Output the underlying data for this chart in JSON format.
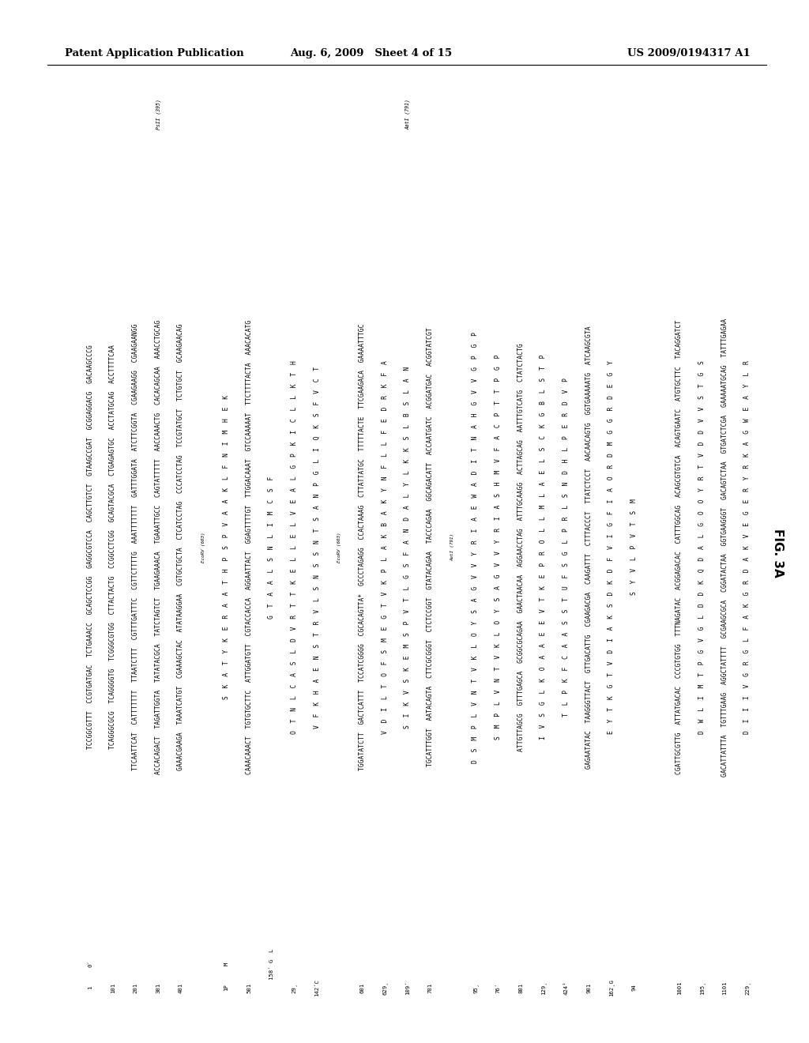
{
  "header_left": "Patent Application Publication",
  "header_middle": "Aug. 6, 2009   Sheet 4 of 15",
  "header_right": "US 2009/0194317 A1",
  "fig_label": "FIG. 3A",
  "background_color": "#ffffff",
  "text_color": "#000000",
  "columns": [
    {
      "num_top": "1",
      "num_bottom": "0⁴",
      "dna": "TCCGGCGTTT CCGTGATGAC TCTGAAACC GCAGCTCCGG GAGGCGTCCA CAGCTTGTCT GTAAGCCGAT GCGGAGGACG GACAAGCCCG",
      "aa": "",
      "note_top": "",
      "note_bottom": ""
    },
    {
      "num_top": "101",
      "num_bottom": "",
      "dna": "TCAGGGCGCG TCAGGGGGTG TCGGGCGTGG CTTACTACTG CCGGCCTCGG GCAGTACGCA CTGAGAGTGC ACCTATGCAG ACCTTTTCAA",
      "aa": "",
      "note_top": "",
      "note_bottom": ""
    },
    {
      "num_top": "201",
      "num_bottom": "",
      "dna": "TTCAATTCAT CATTTTTTTT TTAATCTTT CGTTTGATTTC CGTTCTTTTG AAATTTTTTT GATTTGGATA ATCTTCGGTA ACGAAGAAGG CGAAGAAGG",
      "aa": "",
      "note_top": "",
      "note_bottom": ""
    },
    {
      "num_top": "301",
      "num_bottom": "401",
      "dna": "ACCACAGACT TAGATTGGTA TATATACGCA TATCTAGTCT TGAAGAAACA TGAAATTGCC CAGTATTTTT AACCAAACTG CACACAGCAA AAACCTGCAG",
      "dna2": "GAAACGAAGA TAAATCATGT CGAAAGCTAC ATATAAGGAA CGTGCTGCTA CTCATCCTAC TCCGTATGCT TCCGTGTGCT GCAAGAACAG",
      "aa": "",
      "note_top": "PsII (395)",
      "note_bottom": ""
    },
    {
      "num_top": "1P",
      "num_bottom": "501",
      "dna": "M  S  K  A  T  Y  K  E  R  A  A  T  H  P  S  P  V  A  A  K  L  F  N  I  M  H  E  K",
      "dna2": "CAAACAAACT TGTGTGCTTC ATTGGATGTT CGTACCACCA AGGAATTACT GGAGTTTTGT TTGGACAAAT GTCCAAAAAT TTCTTTTACTA AAACACATG",
      "aa": "",
      "note_top": "",
      "note_bottom": ""
    },
    {
      "num_top": "29▸",
      "num_bottom": "142⁴C",
      "num_bottom2": "EcoRV (603)",
      "dna": "O  T  N  L  C  A  S  L  D  V  R  T  T  K  E  L  L  E  L  V  E  A  L  G  P  K  I  C  L  L  K  T  H",
      "dna2": "V  F  K  H  A  E  N  S  T  R  V  L  S  N  S  S  N  T  S  A  N  P  G  L  I  Q  K  S  F  V  C  T",
      "aa": "",
      "note_top": "",
      "note_bottom": ""
    },
    {
      "num_top": "601",
      "num_bottom": "",
      "dna": "TGGATATCTT GACTCATTT TCCATCGGGG CGCACAGTTA GCCCTAGAGG CCACTAAAG CTTATTATGC TTTTTACTE TTCGAAGACA GAAAATTTGC",
      "aa": "",
      "note_top": "",
      "note_bottom": ""
    },
    {
      "num_top": "629▸",
      "num_bottom": "109⁴",
      "dna": "V  D  I  L  T  D  F  S  M  E  G  T  V  K  P  L  A  K  B  A  K  Y  N  F  L  L  F  E  D  R  K  F  A",
      "dna2": "S  I  K  V  S  K  E  M  S  P  V  T  L  G  S  F  A  N  D  A  L  Y  L  K  K  S  L  B  S  L  A  N",
      "aa": "",
      "note_top": "AatI (781)",
      "note_bottom": ""
    },
    {
      "num_top": "701",
      "num_bottom": "",
      "dna": "TGCATTTGGT AATACAGTA CTTCGCGGGT CTCTCCGGT GTATACAGAA TACCCAGAA GGCAGACATT ACCAATGATC ACGGATGAC ACGGTATCGT",
      "aa": "",
      "note_top": "",
      "note_bottom": "AatI (781)"
    },
    {
      "num_top": "95▸",
      "num_bottom": "76⁴",
      "dna": "D  S  M  P  L  V  N  T  V  K  L  O  Y  S  A  G  V  V  Y  R  I  A  E  W  A  D  I  T  N  A  H  G  V  V  G  P  G  P",
      "dna2": "S  M  P  L  V  N  T  V  K  L  O  Y  S  A  G  V  V  Y  R  I  A  S  H  M  V  F  A  C  P  T  T  P  G  P",
      "aa": "",
      "note_top": "",
      "note_bottom": ""
    },
    {
      "num_top": "801",
      "num_bottom": "",
      "dna": "ATTGTTAGCG GTTTGAGCA GCGGCGCAGAA GAACTAACAA AGGAACCTAG ATTTGCAAGG ACTTAGCAG AATTTGTCATG CTATCTACTG",
      "aa": "",
      "note_top": "",
      "note_bottom": ""
    },
    {
      "num_top": "129▸",
      "num_bottom": "424ⁱ",
      "num_bottom2": "901",
      "dna": "I  V  S  G  L  K  O  A  A  E  E  V  T  K  E  P  R  O  L  L  M  L  A  E  L  S  C  K  G  B  L  S  T  P",
      "dna2": "T  L  P  K  F  C  A  A  S  S  T  U  F  S  G  L  P  R  L  S  N  D  H  L  P  E  R  D  V  P",
      "dna3": "GAGAATATAC TAAGGGTTACT GTTGACATTG CGAAGACGA CAAGATTT CTTTACCCT TTATCTCCT AACAACAGTG GGTGAAAAATG ATCAAGCGTA",
      "aa": "",
      "note_top": "",
      "note_bottom": ""
    },
    {
      "num_top": "162▸G",
      "num_bottom": "94",
      "num_bottom2": "1001",
      "dna": "E  Y  T  K  G  T  V  D  I  A  K  S  D  K  D  F  V  I  G  F  I  A  O  R  D  M  G  G  R  D  E  G  Y",
      "dna2": "S  Y  V  L  P  V  T  S  M",
      "dna3": "CGATTGCGTTG ATTATGACAC CCCGTGTGG TTTNAGATAC ACGGAGACAC CATTTGGCAG ACAGCGTGTCA ACAGTGAATC ATGTGCTTC TACAGGATCT",
      "aa": "",
      "note_top": "",
      "note_bottom": ""
    },
    {
      "num_top": "195▸",
      "num_bottom": "1101",
      "dna": "D  W  L  I  M  T  P  G  V  G  L  D  D  K  Q  D  A  L  G  O  O  Y  R  T  V  D  D  V  V  S  T  G  S",
      "dna2": "GACATTATTTA TGTTTGAAG AGGCTATTTT GCGAAGCGCA CGGATACTAA GGTGAAGGGT GACAGTCTAA GTGATCTCGA GAAAAATGCAG TATTTGAGAA",
      "aa": "",
      "note_top": "",
      "note_bottom": ""
    },
    {
      "num_top": "229▸",
      "num_bottom": "",
      "dna": "D  I  I  I  V  G  R  G  L  F  A  K  G  R  D  A  K  V  E  G  E  R  Y  R  K  A  G  W  E  A  Y  L  R",
      "aa": "",
      "note_top": "",
      "note_bottom": ""
    }
  ],
  "sequence_text": [
    [
      "1",
      "0⁴",
      "TCCGGCGTTT CCGTGATGAC TCTGAAACC GCAGCTCCGG GAGGCGTCCA",
      "CAGCTTGTCT GTAAGCCGAT GCGGAGGACG GACAAGCCCG",
      "",
      "",
      ""
    ],
    [
      "101",
      "",
      "TCAGGGCGCG TCAGGGGGTG TCGGGCGTGG CTTACTACTG CCGGCCTCGG",
      "GCAGTACGCA CTGAGAGTGC ACCTATGCAG ACCTTTTCAA",
      "",
      "",
      ""
    ],
    [
      "201",
      "",
      "TTCAATTCAT CATTTTTTTT TTAATCTTT CGTTTGATTTC CGTTCTTTTG",
      "AAATTTTTTT GATTTGGATA ATCTTCGGTA CGAAGAAGG",
      "",
      "",
      ""
    ],
    [
      "301",
      "401",
      "ACCACAGACT TAGATTGGTA TATATACGCA TATCTAGTCT TGAAGAAACA",
      "TGAAATTGCC CAGTATTTTT AACCAAACTG CACACAGCAA AAACCTGCAG",
      "GAAACGAAGA TAAATCATGT CGAAAGCTAC ATATAAGGAA CGTGCTGCTA",
      "CTCATCCTAC TCCGTATGCT TCCGTGTGCT GCAAGAACAG",
      "PsII (395)"
    ]
  ]
}
